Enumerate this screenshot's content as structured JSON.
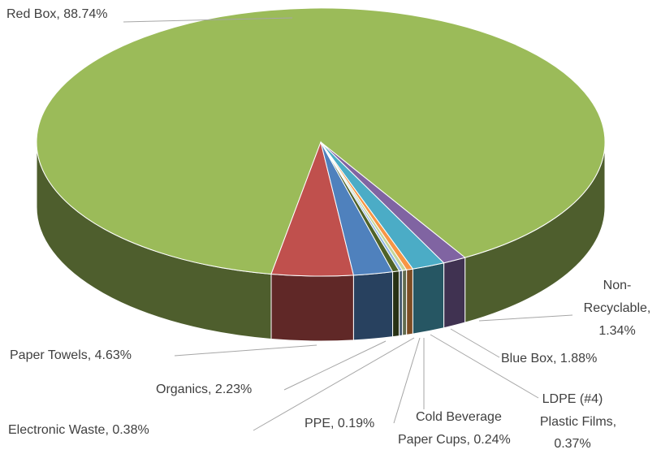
{
  "chart_data": {
    "type": "pie3d",
    "labels": [
      [
        "Red Box, 88.74%"
      ],
      [
        "Paper Towels, 4.63%"
      ],
      [
        "Organics, 2.23%"
      ],
      [
        "Electronic Waste, 0.38%"
      ],
      [
        "PPE, 0.19%"
      ],
      [
        "Cold Beverage",
        "Paper Cups, 0.24%"
      ],
      [
        "LDPE (#4)",
        "Plastic Films,",
        "0.37%"
      ],
      [
        "Blue Box, 1.88%"
      ],
      [
        "Non-",
        "Recyclable,",
        "1.34%"
      ]
    ],
    "values": [
      88.74,
      4.63,
      2.23,
      0.38,
      0.19,
      0.24,
      0.37,
      1.88,
      1.34
    ],
    "colors": [
      "#9bbb59",
      "#c0504d",
      "#4f81bd",
      "#4f6228",
      "#8db3e2",
      "#c3d69b",
      "#f79646",
      "#4bacc6",
      "#8064a2"
    ]
  }
}
